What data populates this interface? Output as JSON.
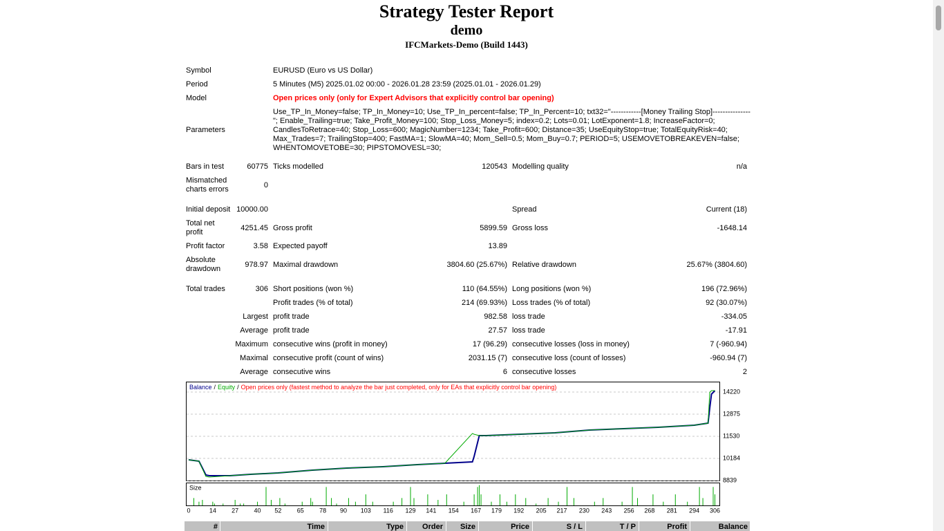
{
  "header": {
    "title": "Strategy Tester Report",
    "subtitle": "demo",
    "server": "IFCMarkets-Demo (Build 1443)"
  },
  "summary": {
    "rows": [
      {
        "cells": [
          "Symbol",
          null,
          "EURUSD (Euro vs US Dollar)",
          null,
          null,
          null
        ]
      },
      {
        "cells": [
          "Period",
          null,
          "5 Minutes (M5) 2025.01.02 00:00 - 2026.01.28 23:59 (2025.01.01 - 2026.01.29)",
          null,
          null,
          null
        ]
      },
      {
        "cells": [
          "Model",
          null,
          "Open prices only (only for Expert Advisors that explicitly control bar opening)",
          null,
          null,
          null
        ],
        "color": "#ff0000"
      },
      {
        "cells": [
          "Parameters",
          null,
          [
            "Use_TP_In_Money=false; TP_In_Money=10; Use_TP_In_percent=false; TP_In_Percent=10; txt32=\"------------[Money Trailing Stop]---------------",
            "\"; Enable_Trailing=true; Take_Profit_Money=100; Stop_Loss_Money=5; index=0.2; Lots=0.01; LotExponent=1.8; IncreaseFactor=0;",
            "CandlesToRetrace=40; Stop_Loss=600; MagicNumber=1234; Take_Profit=600; Distance=35; UseEquityStop=true; TotalEquityRisk=40;",
            "Max_Trades=7; TrailingStop=400; FastMA=1; SlowMA=40; Mom_Sell=0.5; Mom_Buy=0.7; PERIOD=5; USEMOVETOBREAKEVEN=false;",
            "WHENTOMOVETOBE=30; PIPSTOMOVESL=30;"
          ],
          null,
          null,
          null
        ]
      },
      {
        "cells": [
          "Bars in test",
          "60775",
          "Ticks modelled",
          "120543",
          "Modelling quality",
          "n/a"
        ]
      },
      {
        "cells": [
          [
            "Mismatched",
            "charts errors"
          ],
          "0",
          null,
          null,
          null,
          null
        ]
      },
      {
        "cells": [
          "Initial deposit",
          "10000.00",
          null,
          null,
          "Spread",
          "Current (18)"
        ]
      },
      {
        "cells": [
          [
            "Total net",
            "profit"
          ],
          "4251.45",
          "Gross profit",
          "5899.59",
          "Gross loss",
          "-1648.14"
        ]
      },
      {
        "cells": [
          "Profit factor",
          "3.58",
          "Expected payoff",
          "13.89",
          null,
          null
        ]
      },
      {
        "cells": [
          [
            "Absolute",
            "drawdown"
          ],
          "978.97",
          "Maximal drawdown",
          "3804.60 (25.67%)",
          "Relative drawdown",
          "25.67% (3804.60)"
        ]
      },
      {
        "cells": [
          "Total trades",
          "306",
          "Short positions (won %)",
          "110 (64.55%)",
          "Long positions (won %)",
          "196 (72.96%)"
        ]
      },
      {
        "cells": [
          null,
          null,
          "Profit trades (% of total)",
          "214 (69.93%)",
          "Loss trades (% of total)",
          "92 (30.07%)"
        ]
      },
      {
        "cells": [
          null,
          "Largest",
          "profit trade",
          "982.58",
          "loss trade",
          "-334.05"
        ]
      },
      {
        "cells": [
          null,
          "Average",
          "profit trade",
          "27.57",
          "loss trade",
          "-17.91"
        ]
      },
      {
        "cells": [
          null,
          "Maximum",
          "consecutive wins (profit in money)",
          "17 (96.29)",
          "consecutive losses (loss in money)",
          "7 (-960.94)"
        ]
      },
      {
        "cells": [
          null,
          "Maximal",
          "consecutive profit (count of wins)",
          "2031.15 (7)",
          "consecutive loss (count of losses)",
          "-960.94 (7)"
        ]
      },
      {
        "cells": [
          null,
          "Average",
          "consecutive wins",
          "6",
          "consecutive losses",
          "2"
        ]
      }
    ]
  },
  "chart_data": [
    {
      "type": "line",
      "legend_separator": "/",
      "note": "Open prices only (fastest method to analyze the bar just completed, only for EAs that explicitly control bar opening)",
      "note_color": "#ff0000",
      "x": [
        0,
        6,
        10,
        12,
        24,
        36,
        52,
        72,
        92,
        113,
        133,
        149,
        165,
        166,
        169,
        173,
        193,
        213,
        233,
        253,
        273,
        294,
        302,
        303,
        304,
        306
      ],
      "series": [
        {
          "name": "Balance",
          "color": "#00008b",
          "values": [
            10100,
            10016,
            9175,
            9133,
            9133,
            9217,
            9301,
            9469,
            9596,
            9680,
            9806,
            9890,
            9974,
            10310,
            11571,
            11571,
            11655,
            11739,
            11907,
            11991,
            12075,
            12201,
            12327,
            13252,
            14093,
            14303
          ]
        },
        {
          "name": "Equity",
          "color": "#00aa00",
          "values": [
            10100,
            10016,
            9090,
            9050,
            9133,
            9217,
            9301,
            9469,
            9596,
            9680,
            9806,
            9890,
            11700,
            11650,
            11571,
            11571,
            11655,
            11739,
            11907,
            11991,
            12075,
            12201,
            12327,
            14200,
            14303,
            14303
          ]
        }
      ],
      "xlim": [
        0,
        307
      ],
      "ylim": [
        8839,
        14850
      ],
      "yticks": [
        8839,
        10184,
        11530,
        12875,
        14220
      ],
      "grid": true
    },
    {
      "type": "bar",
      "title": "Size",
      "color": "#00aa00",
      "x": [
        3,
        6,
        8,
        14,
        15,
        20,
        27,
        30,
        32,
        40,
        45,
        48,
        53,
        56,
        66,
        71,
        72,
        80,
        83,
        86,
        93,
        97,
        103,
        107,
        119,
        124,
        129,
        131,
        139,
        145,
        150,
        160,
        166,
        168,
        169,
        170,
        176,
        181,
        185,
        190,
        196,
        202,
        209,
        215,
        220,
        224,
        236,
        241,
        252,
        258,
        261,
        270,
        276,
        283,
        290,
        297,
        299,
        305,
        306
      ],
      "values": [
        0.04,
        0.02,
        0.03,
        0.02,
        0.01,
        0.01,
        0.03,
        0.01,
        0.01,
        0.02,
        0.1,
        0.03,
        0.04,
        0.01,
        0.02,
        0.04,
        0.02,
        0.1,
        0.04,
        0.01,
        0.04,
        0.02,
        0.06,
        0.02,
        0.02,
        0.04,
        0.1,
        0.04,
        0.06,
        0.03,
        0.06,
        0.02,
        0.06,
        0.1,
        0.11,
        0.06,
        0.02,
        0.06,
        0.02,
        0.06,
        0.04,
        0.01,
        0.04,
        0.02,
        0.1,
        0.04,
        0.02,
        0.04,
        0.02,
        0.1,
        0.04,
        0.06,
        0.02,
        0.06,
        0.02,
        0.1,
        0.04,
        0.1,
        0.06
      ],
      "xlim": [
        0,
        307
      ],
      "ylim": [
        0,
        0.12
      ],
      "xticks": [
        0,
        14,
        27,
        40,
        52,
        65,
        78,
        90,
        103,
        116,
        129,
        141,
        154,
        167,
        179,
        192,
        205,
        217,
        230,
        243,
        256,
        268,
        281,
        294,
        306
      ]
    }
  ],
  "trades_table": {
    "columns": [
      "#",
      "Time",
      "Type",
      "Order",
      "Size",
      "Price",
      "S / L",
      "T / P",
      "Profit",
      "Balance"
    ]
  }
}
